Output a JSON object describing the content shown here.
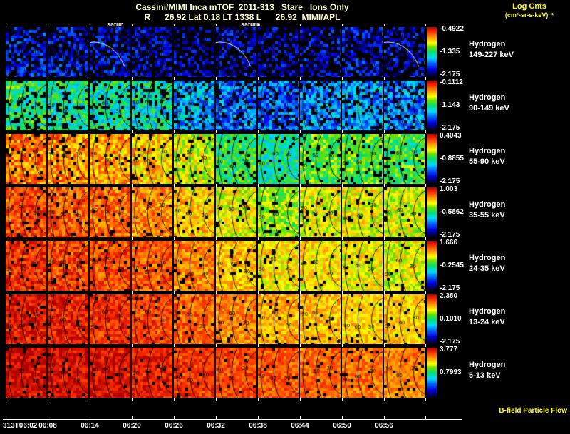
{
  "header": {
    "title": "Cassini/MIMI Inca mTOF  2011-313   Stare   Ions Only",
    "subtitle": "R      26.92 Lat 0.18 LT 1338 L      26.92  MIMI/APL",
    "units_line1": "Log Cnts",
    "units_line2": "(cm²-sr-s-keV)⁻¹"
  },
  "annotations": {
    "saturn_left": "satur",
    "saturn_right": "saturn",
    "bfield": "B-field Particle Flow"
  },
  "chart_data": {
    "type": "heatmap",
    "title": "Cassini/MIMI Inca mTOF 2011-313 Stare Ions Only",
    "colorbar_title": "Log Cnts (cm²-sr-s-keV)⁻¹",
    "x_ticks": [
      "313T06:02",
      "06:08",
      "06:14",
      "06:20",
      "06:26",
      "06:32",
      "06:38",
      "06:44",
      "06:50",
      "06:56"
    ],
    "contour_labels": [
      "30",
      "60",
      "90"
    ],
    "saturn_arc_panels": [
      [
        0,
        2
      ],
      [
        0,
        5
      ],
      [
        0,
        9
      ]
    ],
    "colormap_stops": [
      {
        "v": 0.0,
        "c": "#000014"
      },
      {
        "v": 0.06,
        "c": "#000060"
      },
      {
        "v": 0.15,
        "c": "#0000e0"
      },
      {
        "v": 0.27,
        "c": "#0060ff"
      },
      {
        "v": 0.38,
        "c": "#00d8ff"
      },
      {
        "v": 0.5,
        "c": "#00e070"
      },
      {
        "v": 0.6,
        "c": "#70e000"
      },
      {
        "v": 0.68,
        "c": "#ffff00"
      },
      {
        "v": 0.8,
        "c": "#ff9000"
      },
      {
        "v": 0.9,
        "c": "#ff3000"
      },
      {
        "v": 1.0,
        "c": "#b00000"
      }
    ],
    "rows": [
      {
        "species": "Hydrogen",
        "band": "149-227 keV",
        "cbar_top": "-0.4922",
        "cbar_mid": "-1.335",
        "cbar_bottom": "-2.175",
        "column_levels": [
          0.17,
          0.16,
          0.15,
          0.12,
          0.1,
          0.12,
          0.11,
          0.14,
          0.15,
          0.13
        ],
        "noise": 0.13,
        "black_prob": 0.3
      },
      {
        "species": "Hydrogen",
        "band": "90-149 keV",
        "cbar_top": "-0.1112",
        "cbar_mid": "-1.143",
        "cbar_bottom": "-2.175",
        "column_levels": [
          0.5,
          0.48,
          0.46,
          0.44,
          0.34,
          0.27,
          0.25,
          0.3,
          0.32,
          0.29
        ],
        "noise": 0.14,
        "black_prob": 0.18
      },
      {
        "species": "Hydrogen",
        "band": "55-90 keV",
        "cbar_top": "0.4043",
        "cbar_mid": "-0.8855",
        "cbar_bottom": "-2.175",
        "column_levels": [
          0.82,
          0.8,
          0.78,
          0.74,
          0.66,
          0.52,
          0.47,
          0.56,
          0.57,
          0.54
        ],
        "noise": 0.12,
        "black_prob": 0.1
      },
      {
        "species": "Hydrogen",
        "band": "35-55 keV",
        "cbar_top": "1.003",
        "cbar_mid": "-0.5862",
        "cbar_bottom": "-2.175",
        "column_levels": [
          0.88,
          0.86,
          0.84,
          0.8,
          0.73,
          0.68,
          0.62,
          0.67,
          0.68,
          0.66
        ],
        "noise": 0.1,
        "black_prob": 0.07
      },
      {
        "species": "Hydrogen",
        "band": "24-35 keV",
        "cbar_top": "1.666",
        "cbar_mid": "-0.2545",
        "cbar_bottom": "-2.175",
        "column_levels": [
          0.91,
          0.89,
          0.88,
          0.86,
          0.81,
          0.75,
          0.71,
          0.71,
          0.69,
          0.67
        ],
        "noise": 0.09,
        "black_prob": 0.06
      },
      {
        "species": "Hydrogen",
        "band": "13-24 keV",
        "cbar_top": "2.380",
        "cbar_mid": "0.1010",
        "cbar_bottom": "-2.175",
        "column_levels": [
          0.94,
          0.93,
          0.91,
          0.89,
          0.85,
          0.81,
          0.77,
          0.75,
          0.73,
          0.73
        ],
        "noise": 0.08,
        "black_prob": 0.05
      },
      {
        "species": "Hydrogen",
        "band": "5-13 keV",
        "cbar_top": "3.777",
        "cbar_mid": "0.7993",
        "cbar_bottom": "",
        "column_levels": [
          0.97,
          0.96,
          0.95,
          0.93,
          0.9,
          0.88,
          0.86,
          0.84,
          0.83,
          0.81
        ],
        "noise": 0.07,
        "black_prob": 0.05
      }
    ]
  }
}
